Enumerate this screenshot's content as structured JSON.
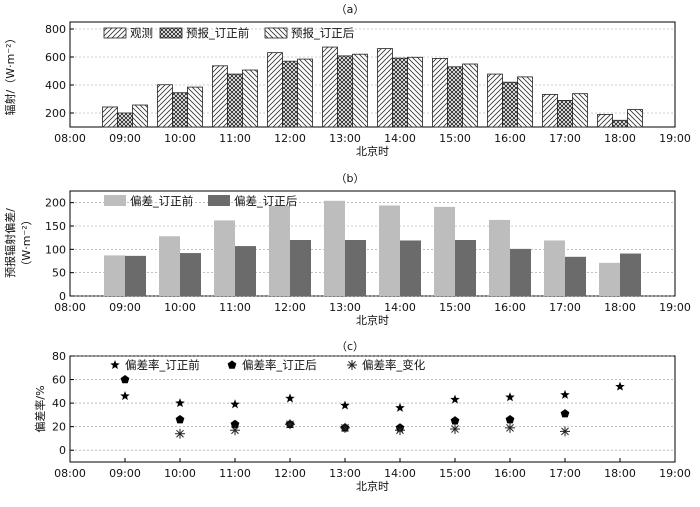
{
  "chart_data": [
    {
      "panel": "(a)",
      "type": "bar",
      "categories": [
        "09:00",
        "10:00",
        "11:00",
        "12:00",
        "13:00",
        "14:00",
        "15:00",
        "16:00",
        "17:00",
        "18:00"
      ],
      "series": [
        {
          "name": "观测",
          "values": [
            243,
            402,
            537,
            631,
            671,
            660,
            590,
            478,
            333,
            190
          ]
        },
        {
          "name": "预报_订正前",
          "values": [
            200,
            345,
            478,
            570,
            608,
            592,
            530,
            420,
            290,
            148
          ]
        },
        {
          "name": "预报_订正后",
          "values": [
            257,
            385,
            507,
            585,
            620,
            598,
            550,
            458,
            338,
            225
          ]
        }
      ],
      "xlabel": "北京时",
      "ylabel": "辐射/（W·m⁻²）",
      "xticks": [
        "08:00",
        "09:00",
        "10:00",
        "11:00",
        "12:00",
        "13:00",
        "14:00",
        "15:00",
        "16:00",
        "17:00",
        "18:00",
        "19:00"
      ],
      "yticks": [
        "200",
        "400",
        "600",
        "800"
      ],
      "ylim": [
        100,
        850
      ],
      "grid": "horizontal dashed",
      "legend": "top"
    },
    {
      "panel": "(b)",
      "type": "bar",
      "categories": [
        "09:00",
        "10:00",
        "11:00",
        "12:00",
        "13:00",
        "14:00",
        "15:00",
        "16:00",
        "17:00",
        "18:00"
      ],
      "series": [
        {
          "name": "偏差_订正前",
          "values": [
            87,
            128,
            162,
            193,
            204,
            194,
            191,
            163,
            119,
            71
          ]
        },
        {
          "name": "偏差_订正后",
          "values": [
            86,
            92,
            107,
            120,
            120,
            119,
            120,
            101,
            84,
            91
          ]
        }
      ],
      "xlabel": "北京时",
      "ylabel_lines": [
        "预报辐射偏差/",
        "（W·m⁻²）"
      ],
      "xticks": [
        "08:00",
        "09:00",
        "10:00",
        "11:00",
        "12:00",
        "13:00",
        "14:00",
        "15:00",
        "16:00",
        "17:00",
        "18:00",
        "19:00"
      ],
      "yticks": [
        "0",
        "50",
        "100",
        "150",
        "200"
      ],
      "ylim": [
        0,
        225
      ],
      "grid": "horizontal dashed",
      "legend": "top"
    },
    {
      "panel": "(c)",
      "type": "scatter",
      "series": [
        {
          "name": "偏差率_订正前",
          "marker": "star",
          "points": [
            [
              "09:00",
              46
            ],
            [
              "10:00",
              40
            ],
            [
              "11:00",
              39
            ],
            [
              "12:00",
              44
            ],
            [
              "13:00",
              38
            ],
            [
              "14:00",
              36
            ],
            [
              "15:00",
              43
            ],
            [
              "16:00",
              45
            ],
            [
              "17:00",
              47
            ],
            [
              "18:00",
              54
            ]
          ]
        },
        {
          "name": "偏差率_订正后",
          "marker": "pentagon",
          "points": [
            [
              "09:00",
              60
            ],
            [
              "10:00",
              26
            ],
            [
              "11:00",
              22
            ],
            [
              "12:00",
              22
            ],
            [
              "13:00",
              19
            ],
            [
              "14:00",
              19
            ],
            [
              "15:00",
              25
            ],
            [
              "16:00",
              26
            ],
            [
              "17:00",
              31
            ]
          ]
        },
        {
          "name": "偏差率_变化",
          "marker": "asterisk",
          "points": [
            [
              "10:00",
              14
            ],
            [
              "11:00",
              17
            ],
            [
              "12:00",
              22
            ],
            [
              "13:00",
              19
            ],
            [
              "14:00",
              17
            ],
            [
              "15:00",
              18
            ],
            [
              "16:00",
              19
            ],
            [
              "17:00",
              16
            ]
          ]
        }
      ],
      "xlabel": "北京时",
      "ylabel": "偏差率/%",
      "xticks": [
        "08:00",
        "09:00",
        "10:00",
        "11:00",
        "12:00",
        "13:00",
        "14:00",
        "15:00",
        "16:00",
        "17:00",
        "18:00",
        "19:00"
      ],
      "yticks": [
        "0",
        "20",
        "40",
        "60",
        "80"
      ],
      "ylim": [
        -10,
        80
      ],
      "grid": "horizontal dashed",
      "legend": "top"
    }
  ],
  "panel_labels": [
    "（a）",
    "（b）",
    "（c）"
  ]
}
